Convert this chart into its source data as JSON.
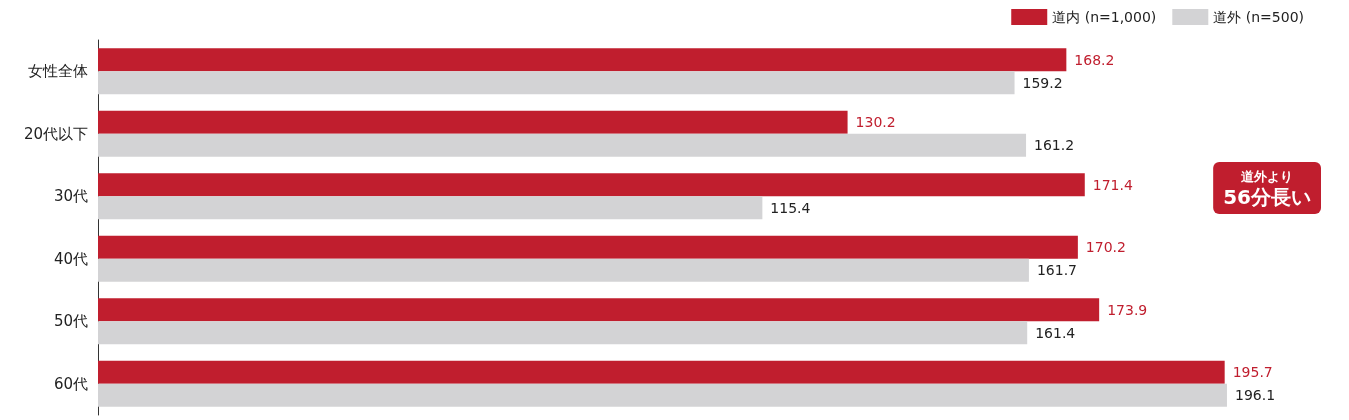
{
  "chart_data": {
    "type": "bar",
    "orientation": "horizontal",
    "categories": [
      "女性全体",
      "20代以下",
      "30代",
      "40代",
      "50代",
      "60代"
    ],
    "series": [
      {
        "name": "道内 (n=1,000)",
        "color": "#c01e2e",
        "values": [
          168.2,
          130.2,
          171.4,
          170.2,
          173.9,
          195.7
        ]
      },
      {
        "name": "道外 (n=500)",
        "color": "#d3d3d5",
        "values": [
          159.2,
          161.2,
          115.4,
          161.7,
          161.4,
          196.1
        ]
      }
    ],
    "data_labels": true,
    "legend": "top right",
    "annotations": [
      "道外より\n56分長い"
    ]
  }
}
